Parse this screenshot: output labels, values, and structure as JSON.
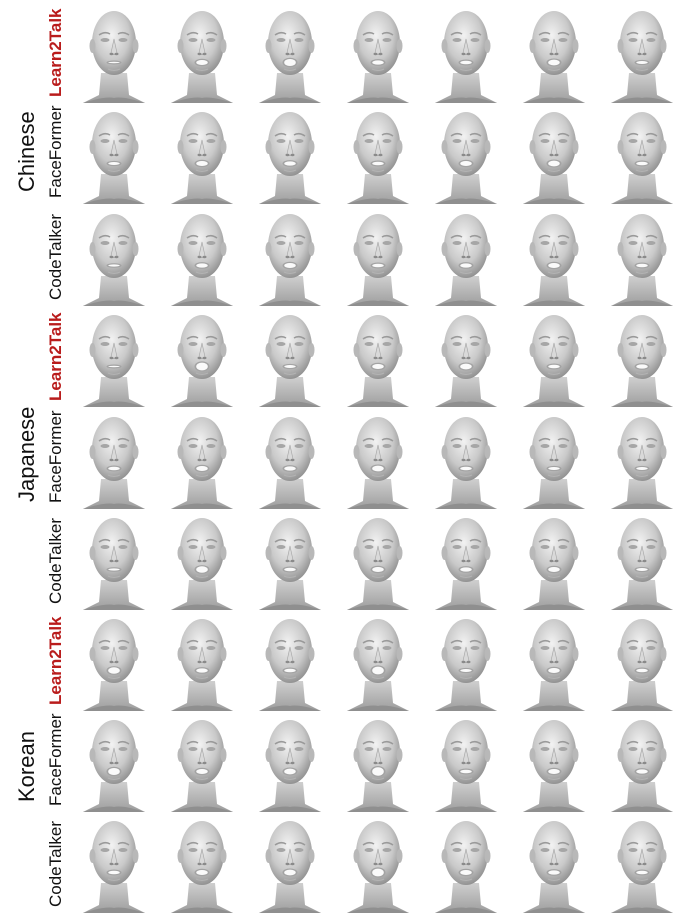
{
  "groups": [
    {
      "language": "Chinese",
      "methods": [
        "Learn2Talk",
        "FaceFormer",
        "CodeTalker"
      ]
    },
    {
      "language": "Japanese",
      "methods": [
        "Learn2Talk",
        "FaceFormer",
        "CodeTalker"
      ]
    },
    {
      "language": "Korean",
      "methods": [
        "Learn2Talk",
        "FaceFormer",
        "CodeTalker"
      ]
    }
  ],
  "frames_per_row": 7,
  "highlight_method": "Learn2Talk",
  "colors": {
    "highlight": "#b91c1c",
    "text": "#111111",
    "mesh_light": "#f2f2f2",
    "mesh_dark": "#8c8c8c"
  },
  "mouth_open": [
    [
      0,
      0.5,
      0.8,
      0.4,
      0.3,
      0.6,
      0.2
    ],
    [
      0.2,
      0.5,
      0.4,
      0.3,
      0.5,
      0.6,
      0.3
    ],
    [
      0.1,
      0.4,
      0.5,
      0.3,
      0.4,
      0.5,
      0.3
    ],
    [
      0,
      0.9,
      0.2,
      0.5,
      0.6,
      0.3,
      0.4
    ],
    [
      0.3,
      0.5,
      0.4,
      0.6,
      0.3,
      0.2,
      0.2
    ],
    [
      0.1,
      0.7,
      0.3,
      0.5,
      0.4,
      0.5,
      0.2
    ],
    [
      0.7,
      0.4,
      0.3,
      0.9,
      0.2,
      0.5,
      0.3
    ],
    [
      0.8,
      0.5,
      0.6,
      1.0,
      0.3,
      0.5,
      0.4
    ],
    [
      0.3,
      0.5,
      0.6,
      0.9,
      0.5,
      0.4,
      0.3
    ]
  ]
}
